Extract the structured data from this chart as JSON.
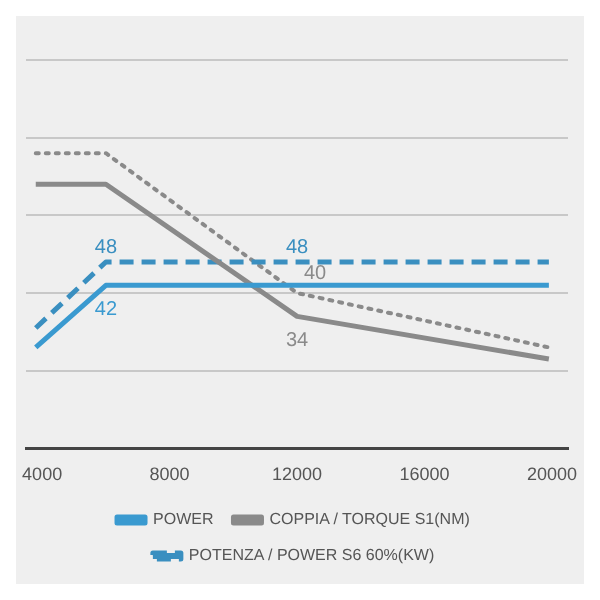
{
  "chart_data": {
    "type": "line",
    "x": [
      3800,
      6000,
      12000,
      19900
    ],
    "xlim": [
      3500,
      20500
    ],
    "xticks": [
      4000,
      8000,
      12000,
      16000,
      20000
    ],
    "ylim": [
      0,
      100
    ],
    "yticks": [
      {
        "value": 0,
        "label": null
      },
      {
        "value": 20,
        "label": null
      },
      {
        "value": 40,
        "label": null
      },
      {
        "value": 60,
        "label": null
      },
      {
        "value": 80,
        "label": null
      },
      {
        "value": 100,
        "label": null
      }
    ],
    "tick_labels": "x",
    "grid": "y",
    "legend": "bottom",
    "series": [
      {
        "name": "POWER",
        "color": "#3a9ad0",
        "line_style": "solid",
        "values": [
          26,
          42,
          42,
          42
        ],
        "value_labels": [
          null,
          "42",
          null,
          null
        ]
      },
      {
        "name": "COPPIA / TORQUE S1(NM)",
        "color": "#8a8a8a",
        "line_style": "solid",
        "values": [
          68,
          68,
          34,
          23
        ],
        "value_labels": [
          null,
          null,
          "34",
          null
        ]
      },
      {
        "name": "POTENZA / POWER S6 60%(KW)",
        "color": "#3a8fc0",
        "line_style": "dashed",
        "values": [
          31,
          48,
          48,
          48
        ],
        "value_labels": [
          null,
          "48",
          "48",
          null
        ]
      },
      {
        "color": "#8a8a8a",
        "line_style": "dotted",
        "values": [
          76,
          76,
          40,
          26
        ],
        "value_labels": [
          null,
          null,
          "40",
          null
        ]
      }
    ]
  }
}
